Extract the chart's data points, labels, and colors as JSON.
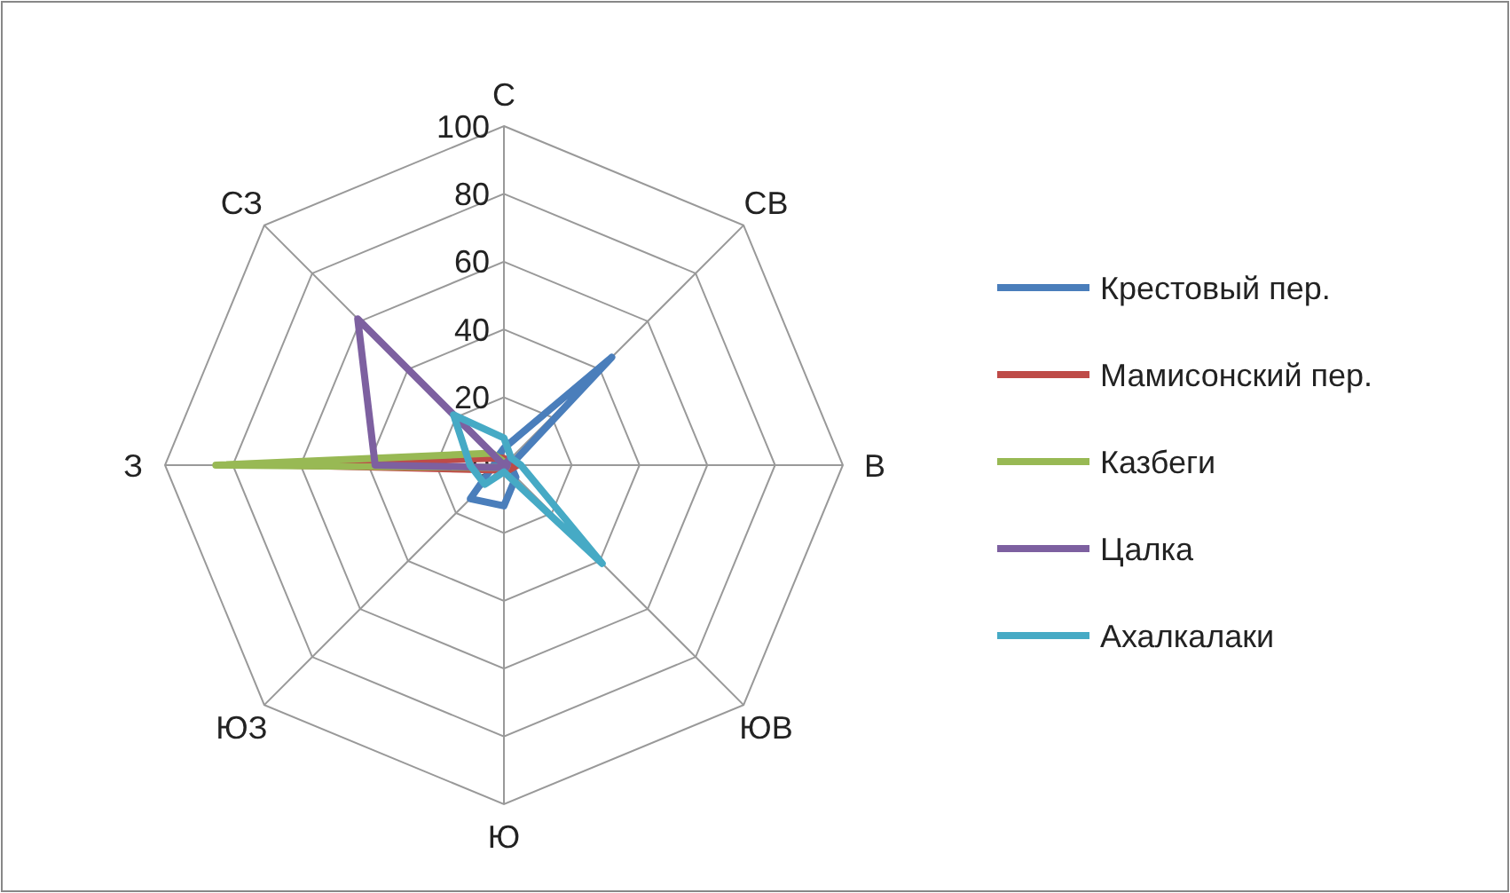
{
  "chart_data": {
    "type": "radar",
    "categories": [
      "С",
      "СВ",
      "В",
      "ЮВ",
      "Ю",
      "ЮЗ",
      "З",
      "СЗ"
    ],
    "ylim": [
      0,
      100
    ],
    "yticks": [
      0,
      20,
      40,
      60,
      80,
      100
    ],
    "grid": true,
    "legend": "right",
    "marker": "none",
    "series": [
      {
        "name": "Крестовый пер.",
        "color": "#4a7ebb",
        "values": [
          5,
          45,
          2,
          5,
          12,
          14,
          3,
          3
        ]
      },
      {
        "name": "Мамисонский пер.",
        "color": "#be4b48",
        "values": [
          2,
          2,
          4,
          2,
          2,
          2,
          63,
          3
        ]
      },
      {
        "name": "Казбеги",
        "color": "#98b954",
        "values": [
          1,
          1,
          1,
          1,
          1,
          1,
          85,
          5
        ]
      },
      {
        "name": "Цалка",
        "color": "#7d60a0",
        "values": [
          0,
          2,
          1,
          1,
          1,
          1,
          38,
          61
        ]
      },
      {
        "name": "Ахалкалаки",
        "color": "#46aac5",
        "values": [
          8,
          3,
          5,
          41,
          2,
          8,
          10,
          21
        ]
      }
    ]
  }
}
